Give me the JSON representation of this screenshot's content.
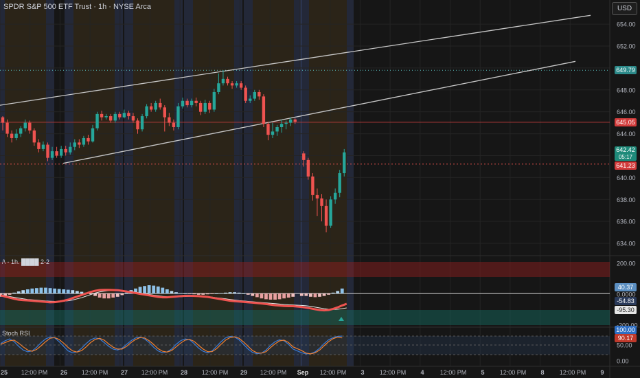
{
  "header": {
    "title": "SPDR S&P 500 ETF Trust · 1h · NYSE Arca",
    "currency_button": "USD"
  },
  "price_axis": {
    "ticks": [
      "654.00",
      "652.00",
      "650.00",
      "648.00",
      "646.00",
      "644.00",
      "642.00",
      "640.00",
      "638.00",
      "636.00",
      "634.00"
    ],
    "tags": {
      "cyan_level": "649.79",
      "red_level": "645.05",
      "last_price": "642.42",
      "countdown": "05:17",
      "dotted_red_level": "641.23"
    }
  },
  "macd_panel": {
    "title": "/\\ - 1h. ████ 2-2",
    "ticks": [
      "200.00",
      "0.0000",
      "-200.00"
    ],
    "tags": [
      "40.37",
      "-54.83",
      "-95.30"
    ]
  },
  "stoch_panel": {
    "title": "Stoch RSI",
    "ticks": [
      "100.00",
      "50.00",
      "0.00"
    ],
    "tags": [
      "100.00",
      "90.17"
    ]
  },
  "time_axis": {
    "labels": [
      "25",
      "12:00 PM",
      "26",
      "12:00 PM",
      "27",
      "12:00 PM",
      "28",
      "12:00 PM",
      "29",
      "12:00 PM",
      "Sep",
      "12:00 PM",
      "3",
      "12:00 PM",
      "4",
      "12:00 PM",
      "5",
      "12:00 PM",
      "8",
      "12:00 PM",
      "9"
    ]
  },
  "colors": {
    "up": "#26a69a",
    "down": "#ef5350",
    "cyan": "#5bc4c4",
    "background": "#161616"
  },
  "chart_data": {
    "type": "candlestick",
    "candles": [
      [
        645.5,
        645.0,
        645.6,
        644.3
      ],
      [
        645.0,
        644.0,
        645.3,
        643.7
      ],
      [
        644.0,
        643.6,
        644.3,
        643.2
      ],
      [
        643.6,
        644.0,
        644.4,
        643.4
      ],
      [
        644.0,
        644.5,
        644.7,
        643.7
      ],
      [
        644.5,
        645.0,
        645.3,
        644.2
      ],
      [
        645.0,
        644.3,
        645.2,
        644.0
      ],
      [
        644.3,
        643.2,
        644.5,
        642.9
      ],
      [
        643.2,
        642.6,
        643.5,
        642.3
      ],
      [
        642.6,
        643.0,
        643.3,
        642.4
      ],
      [
        643.0,
        641.8,
        643.2,
        641.5
      ],
      [
        641.8,
        642.4,
        642.8,
        641.6
      ],
      [
        642.4,
        642.0,
        642.8,
        641.8
      ],
      [
        642.0,
        642.6,
        642.9,
        641.8
      ],
      [
        642.6,
        642.3,
        642.9,
        642.0
      ],
      [
        642.3,
        642.8,
        643.2,
        642.1
      ],
      [
        642.8,
        643.2,
        643.5,
        642.5
      ],
      [
        643.2,
        643.0,
        643.5,
        642.7
      ],
      [
        643.0,
        643.6,
        643.8,
        642.8
      ],
      [
        643.6,
        643.3,
        643.9,
        643.0
      ],
      [
        643.3,
        644.5,
        644.8,
        643.2
      ],
      [
        644.5,
        645.8,
        646.0,
        644.3
      ],
      [
        645.8,
        645.5,
        646.1,
        645.2
      ],
      [
        645.5,
        645.6,
        645.8,
        645.3
      ],
      [
        645.6,
        645.2,
        645.8,
        645.0
      ],
      [
        645.2,
        645.8,
        646.0,
        645.0
      ],
      [
        645.8,
        645.5,
        646.0,
        645.3
      ],
      [
        645.5,
        645.9,
        646.2,
        645.4
      ],
      [
        645.9,
        645.6,
        646.1,
        645.3
      ],
      [
        645.6,
        645.2,
        645.9,
        645.0
      ],
      [
        645.2,
        644.4,
        645.4,
        644.0
      ],
      [
        644.4,
        645.6,
        645.8,
        644.2
      ],
      [
        645.6,
        646.5,
        646.7,
        645.4
      ],
      [
        646.5,
        646.2,
        646.8,
        646.0
      ],
      [
        646.2,
        646.8,
        647.0,
        646.0
      ],
      [
        646.8,
        646.4,
        647.2,
        646.2
      ],
      [
        646.4,
        645.5,
        646.6,
        644.2
      ],
      [
        645.5,
        645.0,
        645.9,
        644.7
      ],
      [
        645.0,
        644.6,
        645.3,
        644.3
      ],
      [
        644.6,
        646.5,
        646.8,
        644.4
      ],
      [
        646.5,
        647.0,
        647.3,
        646.3
      ],
      [
        647.0,
        646.6,
        647.2,
        646.4
      ],
      [
        646.6,
        647.0,
        647.2,
        646.4
      ],
      [
        647.0,
        646.8,
        647.3,
        646.5
      ],
      [
        646.8,
        646.0,
        647.0,
        645.7
      ],
      [
        646.0,
        646.8,
        647.1,
        645.8
      ],
      [
        646.8,
        646.2,
        647.0,
        645.9
      ],
      [
        646.2,
        647.8,
        648.1,
        646.0
      ],
      [
        647.8,
        648.6,
        649.5,
        647.6
      ],
      [
        648.6,
        649.0,
        649.8,
        648.4
      ],
      [
        649.0,
        648.6,
        649.2,
        648.4
      ],
      [
        648.6,
        648.4,
        648.8,
        648.1
      ],
      [
        648.4,
        648.6,
        648.8,
        648.2
      ],
      [
        648.6,
        648.2,
        648.8,
        648.0
      ],
      [
        648.2,
        647.0,
        648.4,
        646.8
      ],
      [
        647.0,
        647.2,
        647.5,
        646.8
      ],
      [
        647.2,
        647.8,
        648.0,
        647.0
      ],
      [
        647.8,
        647.4,
        648.0,
        647.1
      ],
      [
        647.4,
        644.9,
        647.6,
        644.6
      ],
      [
        644.9,
        643.9,
        645.1,
        643.4
      ],
      [
        643.9,
        644.2,
        645.0,
        643.6
      ],
      [
        644.2,
        644.6,
        644.8,
        643.8
      ],
      [
        644.6,
        644.9,
        645.3,
        644.1
      ],
      [
        644.9,
        645.0,
        645.2,
        644.4
      ],
      [
        645.0,
        645.3,
        645.5,
        644.7
      ],
      [
        645.3,
        645.1,
        645.4,
        644.9
      ],
      [
        642.2,
        641.6,
        642.4,
        641.0
      ],
      [
        641.6,
        640.1,
        641.8,
        639.8
      ],
      [
        640.1,
        638.4,
        640.4,
        637.9
      ],
      [
        638.4,
        638.1,
        639.0,
        636.5
      ],
      [
        638.1,
        637.4,
        638.5,
        636.0
      ],
      [
        637.4,
        635.6,
        638.0,
        635.0
      ],
      [
        635.6,
        638.0,
        638.3,
        635.4
      ],
      [
        638.0,
        638.6,
        639.0,
        637.6
      ],
      [
        638.6,
        640.4,
        640.7,
        638.2
      ],
      [
        640.4,
        642.3,
        642.6,
        640.1
      ]
    ],
    "trendlines": [
      {
        "from": [
          "Aug 25",
          646.6
        ],
        "to": [
          "Sep 9",
          654.8
        ]
      },
      {
        "from": [
          "Aug 26",
          641.3
        ],
        "to": [
          "Sep 8",
          650.6
        ]
      }
    ],
    "horizontal_levels": [
      649.79,
      645.05,
      641.23
    ],
    "ylim": [
      633.0,
      656.2
    ]
  }
}
